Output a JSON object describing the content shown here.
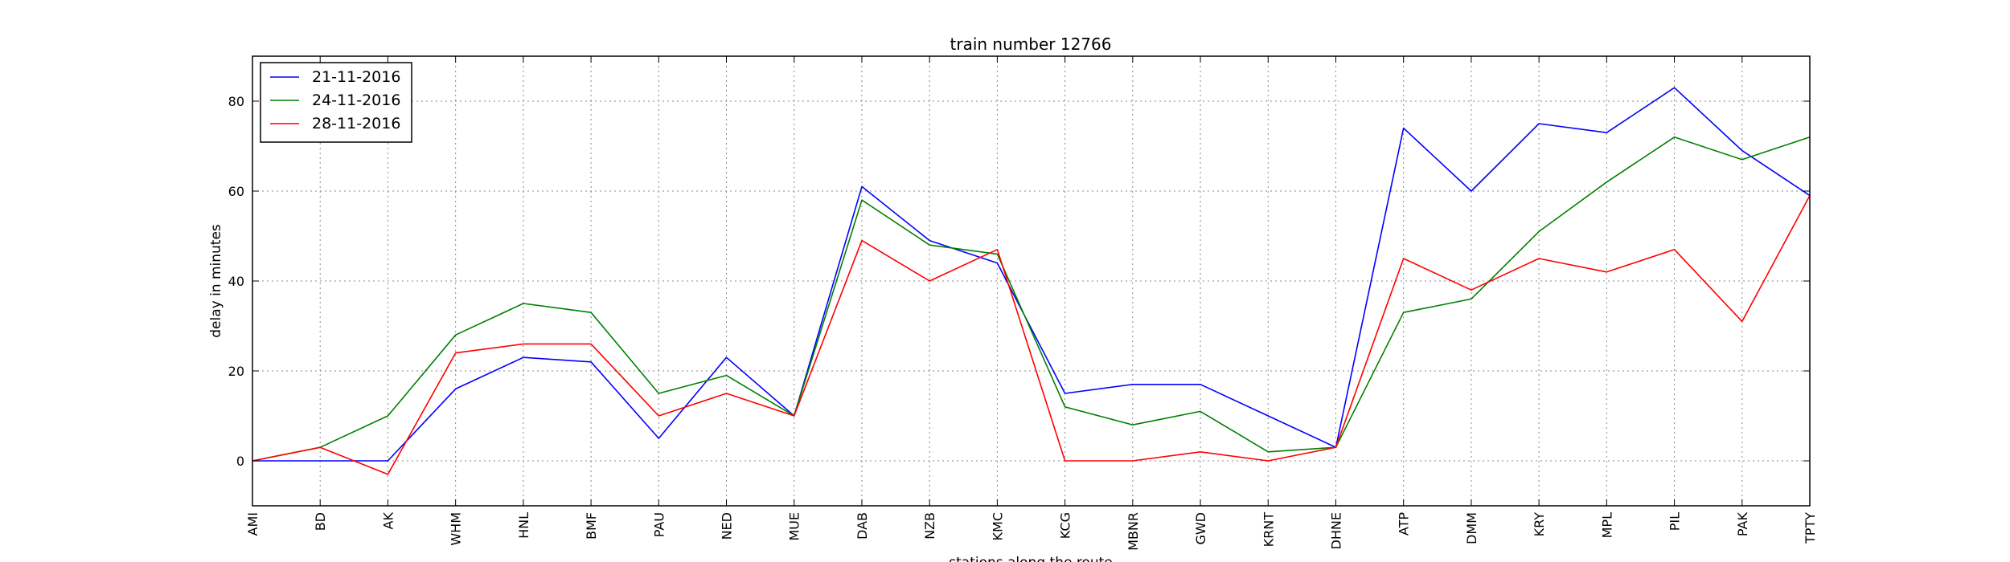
{
  "chart_data": {
    "type": "line",
    "title": "train number 12766",
    "xlabel": "stations along the route",
    "ylabel": "delay in minutes",
    "categories": [
      "AMI",
      "BD",
      "AK",
      "WHM",
      "HNL",
      "BMF",
      "PAU",
      "NED",
      "MUE",
      "DAB",
      "NZB",
      "KMC",
      "KCG",
      "MBNR",
      "GWD",
      "KRNT",
      "DHNE",
      "ATP",
      "DMM",
      "KRY",
      "MPL",
      "PIL",
      "PAK",
      "TPTY"
    ],
    "ylim": [
      -10,
      90
    ],
    "yticks": [
      0,
      20,
      40,
      60,
      80
    ],
    "grid": true,
    "legend_position": "top-left",
    "series": [
      {
        "name": "21-11-2016",
        "color": "#0000ff",
        "values": [
          0,
          0,
          0,
          16,
          23,
          22,
          5,
          23,
          10,
          61,
          49,
          44,
          15,
          17,
          17,
          10,
          3,
          74,
          60,
          75,
          73,
          83,
          69,
          59
        ]
      },
      {
        "name": "24-11-2016",
        "color": "#008000",
        "values": [
          0,
          3,
          10,
          28,
          35,
          33,
          15,
          19,
          10,
          58,
          48,
          46,
          12,
          8,
          11,
          2,
          3,
          33,
          36,
          51,
          62,
          72,
          67,
          72
        ]
      },
      {
        "name": "28-11-2016",
        "color": "#ff0000",
        "values": [
          0,
          3,
          -3,
          24,
          26,
          26,
          10,
          15,
          10,
          49,
          40,
          47,
          0,
          0,
          2,
          0,
          3,
          45,
          38,
          45,
          42,
          47,
          31,
          59
        ]
      }
    ]
  }
}
